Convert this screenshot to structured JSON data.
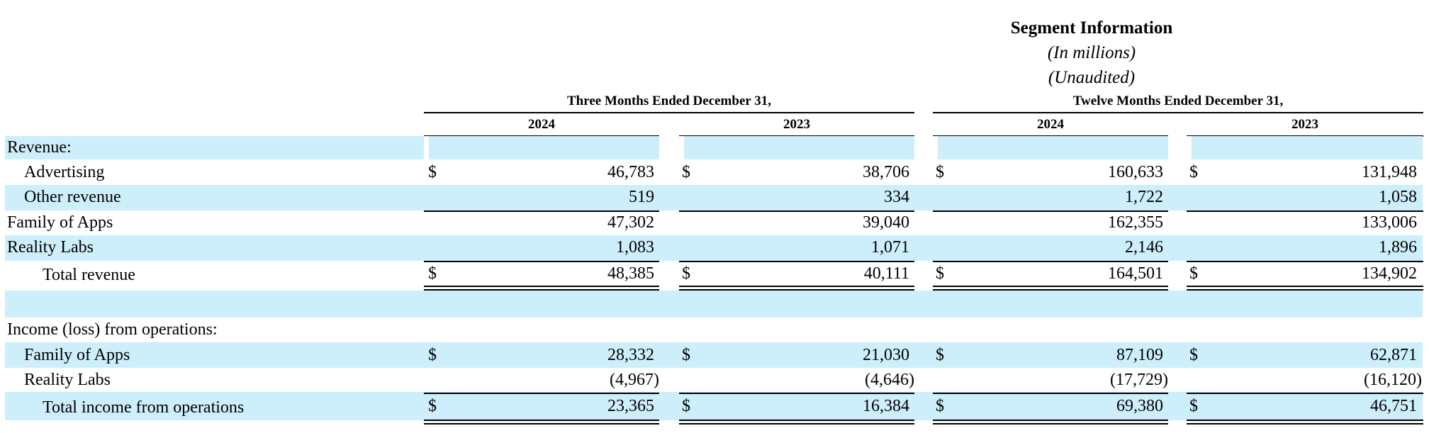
{
  "header": {
    "title": "Segment Information",
    "subtitle_units": "(In millions)",
    "subtitle_audit": "(Unaudited)"
  },
  "periods": [
    {
      "label": "Three Months Ended December 31,",
      "years": [
        "2024",
        "2023"
      ]
    },
    {
      "label": "Twelve Months Ended December 31,",
      "years": [
        "2024",
        "2023"
      ]
    }
  ],
  "currency_symbol": "$",
  "rows": {
    "revenue_heading": {
      "label": "Revenue:"
    },
    "advertising": {
      "label": "Advertising",
      "values": [
        "46,783",
        "38,706",
        "160,633",
        "131,948"
      ]
    },
    "other_revenue": {
      "label": "Other revenue",
      "values": [
        "519",
        "334",
        "1,722",
        "1,058"
      ]
    },
    "foa_revenue": {
      "label": "Family of Apps",
      "values": [
        "47,302",
        "39,040",
        "162,355",
        "133,006"
      ]
    },
    "rl_revenue": {
      "label": "Reality Labs",
      "values": [
        "1,083",
        "1,071",
        "2,146",
        "1,896"
      ]
    },
    "total_revenue": {
      "label": "Total revenue",
      "values": [
        "48,385",
        "40,111",
        "164,501",
        "134,902"
      ]
    },
    "income_heading": {
      "label": "Income (loss) from operations:"
    },
    "foa_income": {
      "label": "Family of Apps",
      "values": [
        "28,332",
        "21,030",
        "87,109",
        "62,871"
      ]
    },
    "rl_income": {
      "label": "Reality Labs",
      "values": [
        "(4,967)",
        "(4,646)",
        "(17,729)",
        "(16,120)"
      ]
    },
    "total_income": {
      "label": "Total income from operations",
      "values": [
        "23,365",
        "16,384",
        "69,380",
        "46,751"
      ]
    }
  }
}
